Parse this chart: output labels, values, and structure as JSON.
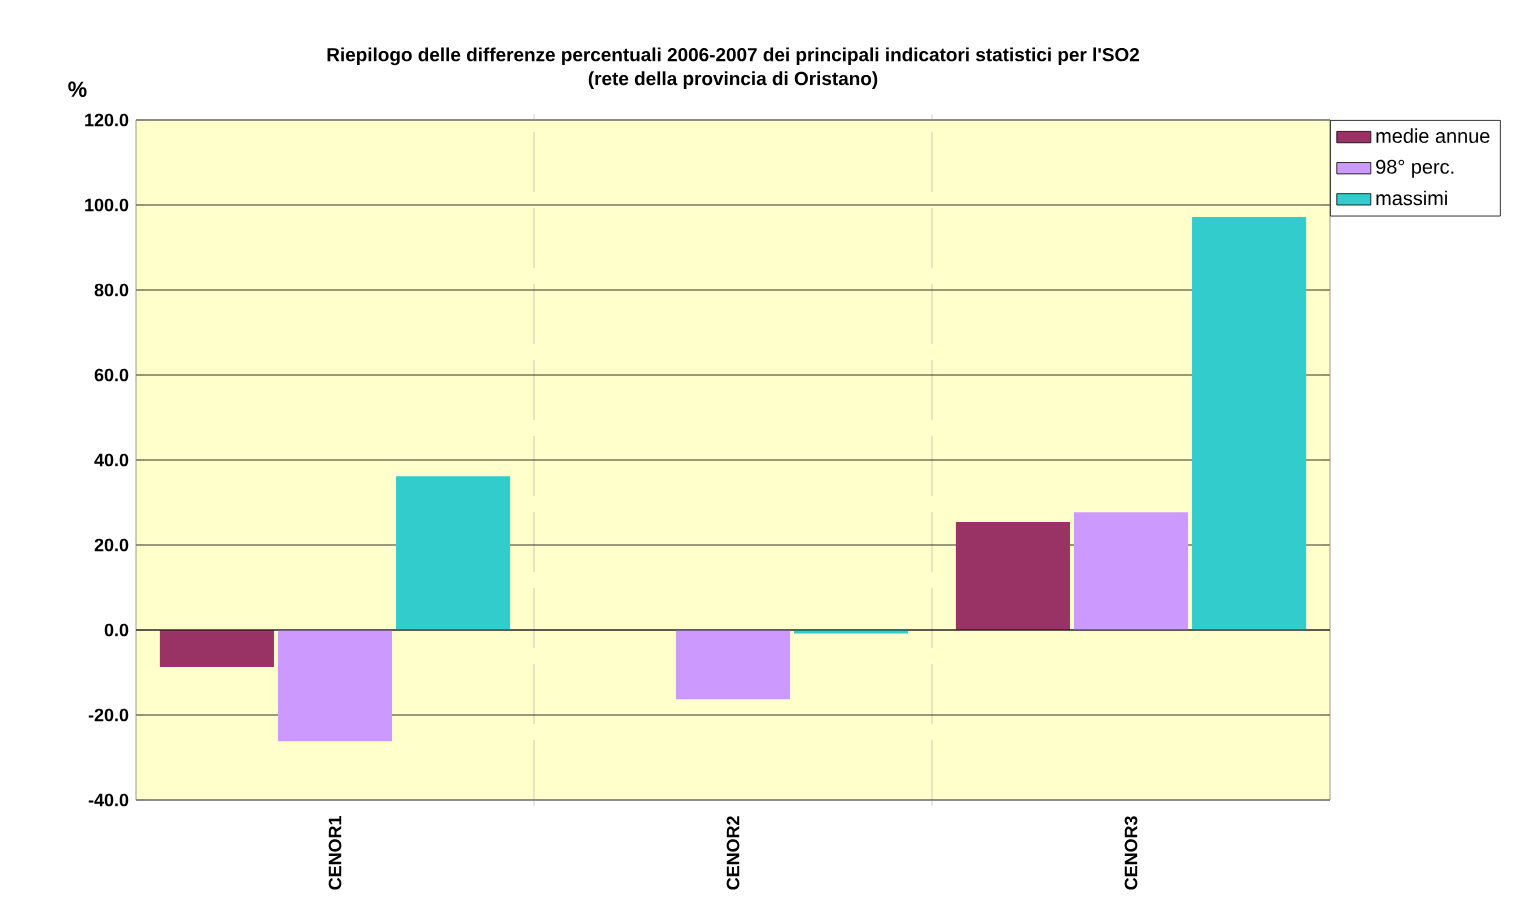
{
  "chart_data": {
    "type": "bar",
    "title": "Riepilogo delle differenze percentuali 2006-2007 dei principali indicatori statistici per l'SO2",
    "subtitle": "(rete della provincia di Oristano)",
    "ylabel": "%",
    "categories": [
      "CENOR1",
      "CENOR2",
      "CENOR3"
    ],
    "series": [
      {
        "name": "medie annue",
        "color": "#993366",
        "values": [
          -8.7,
          0,
          25.4
        ]
      },
      {
        "name": "98° perc.",
        "color": "#cc99ff",
        "values": [
          -26.2,
          -16.3,
          27.7
        ]
      },
      {
        "name": "massimi",
        "color": "#33cccc",
        "values": [
          36.2,
          -0.8,
          97.2
        ]
      }
    ],
    "ylim": [
      -40,
      120
    ],
    "yticks": [
      {
        "value": -40,
        "label": "-40.0"
      },
      {
        "value": -20,
        "label": "-20.0"
      },
      {
        "value": 0,
        "label": "0.0"
      },
      {
        "value": 20,
        "label": "20.0"
      },
      {
        "value": 40,
        "label": "40.0"
      },
      {
        "value": 60,
        "label": "60.0"
      },
      {
        "value": 80,
        "label": "80.0"
      },
      {
        "value": 100,
        "label": "100.0"
      },
      {
        "value": 120,
        "label": "120.0"
      }
    ],
    "grid": true,
    "legend": "top right"
  }
}
